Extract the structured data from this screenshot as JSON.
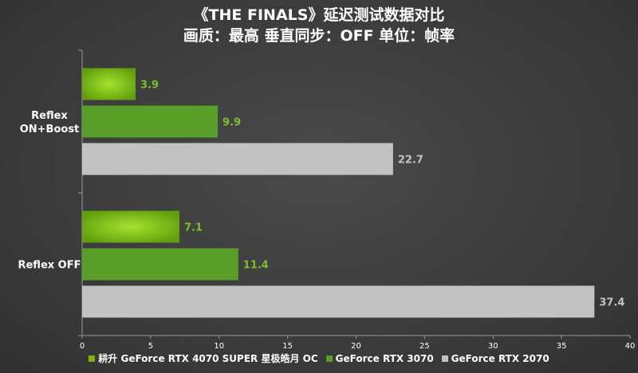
{
  "chart_data": {
    "type": "bar",
    "orientation": "horizontal",
    "title": "《THE FINALS》延迟测试数据对比",
    "subtitle": "画质：最高  垂直同步：OFF 单位：帧率",
    "categories": [
      "Reflex\nON+Boost",
      "Reflex OFF"
    ],
    "series": [
      {
        "name": "耕升 GeForce RTX 4070 SUPER 星极皓月 OC",
        "values": [
          3.9,
          7.1
        ],
        "color": "#76b900"
      },
      {
        "name": "GeForce RTX 3070",
        "values": [
          9.9,
          11.4
        ],
        "color": "#5a9e2a"
      },
      {
        "name": "GeForce RTX 2070",
        "values": [
          22.7,
          37.4
        ],
        "color": "#c2c2c2"
      }
    ],
    "xlim": [
      0,
      40
    ],
    "xticks": [
      0,
      5,
      10,
      15,
      20,
      25,
      30,
      35,
      40
    ],
    "legend_position": "bottom",
    "grid": false,
    "value_label_colors": [
      "#7cc02a",
      "#7cc02a",
      "#c2c2c2"
    ]
  }
}
